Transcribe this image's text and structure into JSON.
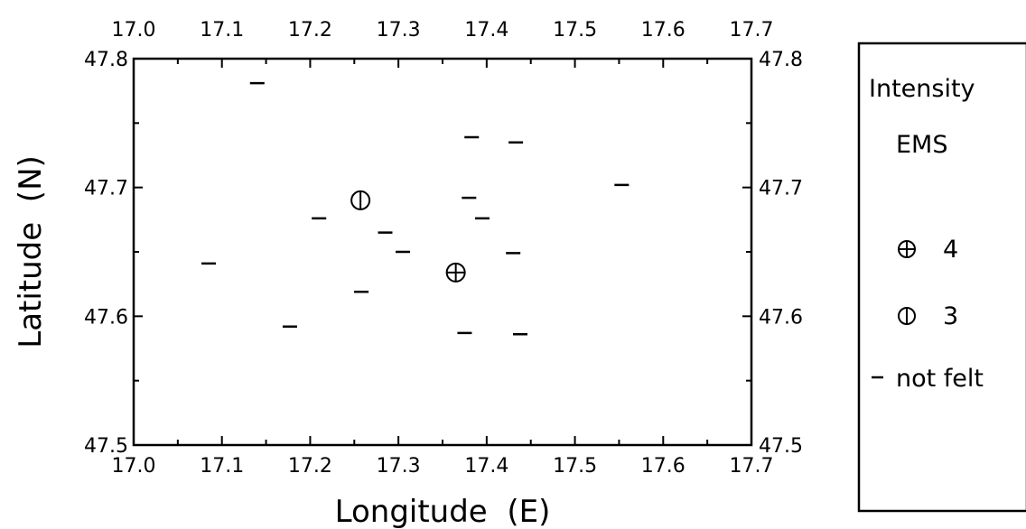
{
  "chart_data": {
    "type": "scatter",
    "xlabel": "Longitude  (E)",
    "ylabel": "Latitude  (N)",
    "xlim": [
      17.0,
      17.7
    ],
    "ylim": [
      47.5,
      47.8
    ],
    "x_ticks": [
      "17.0",
      "17.1",
      "17.2",
      "17.3",
      "17.4",
      "17.5",
      "17.6",
      "17.7"
    ],
    "y_ticks": [
      "47.5",
      "47.6",
      "47.7",
      "47.8"
    ],
    "grid": false,
    "series": [
      {
        "name": "4",
        "marker": "circle-plus",
        "points": [
          {
            "x": 17.365,
            "y": 47.634
          }
        ]
      },
      {
        "name": "3",
        "marker": "circle-bar",
        "points": [
          {
            "x": 17.257,
            "y": 47.69
          }
        ]
      },
      {
        "name": "not felt",
        "marker": "dash",
        "points": [
          {
            "x": 17.14,
            "y": 47.781
          },
          {
            "x": 17.383,
            "y": 47.739
          },
          {
            "x": 17.433,
            "y": 47.735
          },
          {
            "x": 17.553,
            "y": 47.702
          },
          {
            "x": 17.38,
            "y": 47.692
          },
          {
            "x": 17.21,
            "y": 47.676
          },
          {
            "x": 17.395,
            "y": 47.676
          },
          {
            "x": 17.285,
            "y": 47.665
          },
          {
            "x": 17.305,
            "y": 47.65
          },
          {
            "x": 17.43,
            "y": 47.649
          },
          {
            "x": 17.085,
            "y": 47.641
          },
          {
            "x": 17.258,
            "y": 47.619
          },
          {
            "x": 17.177,
            "y": 47.592
          },
          {
            "x": 17.375,
            "y": 47.587
          },
          {
            "x": 17.438,
            "y": 47.586
          }
        ]
      }
    ],
    "legend": {
      "title_line1": "Intensity",
      "title_line2": "EMS",
      "entries": [
        "4",
        "3",
        "not felt"
      ]
    }
  }
}
